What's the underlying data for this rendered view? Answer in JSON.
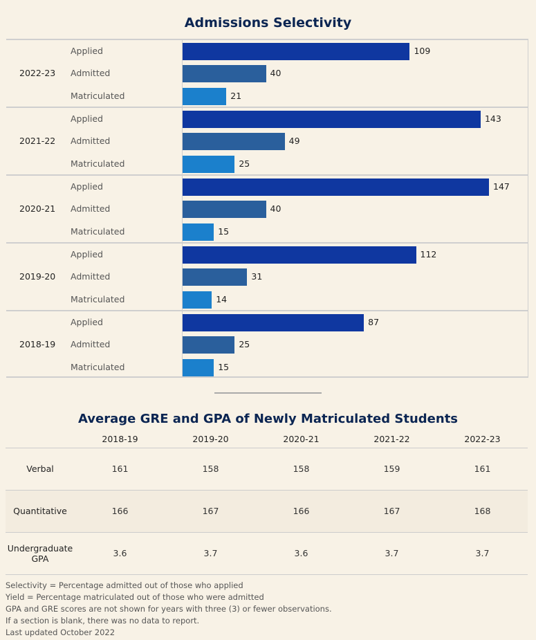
{
  "chart_data": {
    "type": "bar",
    "orientation": "horizontal",
    "title": "Admissions Selectivity",
    "categories": [
      "Applied",
      "Admitted",
      "Matriculated"
    ],
    "groups": [
      {
        "year": "2022-23",
        "values": [
          109,
          40,
          21
        ]
      },
      {
        "year": "2021-22",
        "values": [
          143,
          49,
          25
        ]
      },
      {
        "year": "2020-21",
        "values": [
          147,
          40,
          15
        ]
      },
      {
        "year": "2019-20",
        "values": [
          112,
          31,
          14
        ]
      },
      {
        "year": "2018-19",
        "values": [
          87,
          25,
          15
        ]
      }
    ],
    "colors": [
      "#0f37a0",
      "#2a5f9c",
      "#1b80cc"
    ],
    "xlim": [
      0,
      147
    ],
    "grid": false
  },
  "table": {
    "title": "Average GRE and GPA of Newly Matriculated Students",
    "columns": [
      "2018-19",
      "2019-20",
      "2020-21",
      "2021-22",
      "2022-23"
    ],
    "rows": [
      {
        "label": "Verbal",
        "values": [
          "161",
          "158",
          "158",
          "159",
          "161"
        ]
      },
      {
        "label": "Quantitative",
        "values": [
          "166",
          "167",
          "166",
          "167",
          "168"
        ]
      },
      {
        "label": "Undergraduate GPA",
        "values": [
          "3.6",
          "3.7",
          "3.6",
          "3.7",
          "3.7"
        ]
      }
    ]
  },
  "notes": [
    "Selectivity = Percentage admitted out of those who applied",
    "Yield = Percentage matriculated out of those who were admitted",
    "GPA and GRE scores are not shown for years with three (3) or fewer observations.",
    "If a section is blank, there was no data to report.",
    "Last updated October 2022"
  ]
}
